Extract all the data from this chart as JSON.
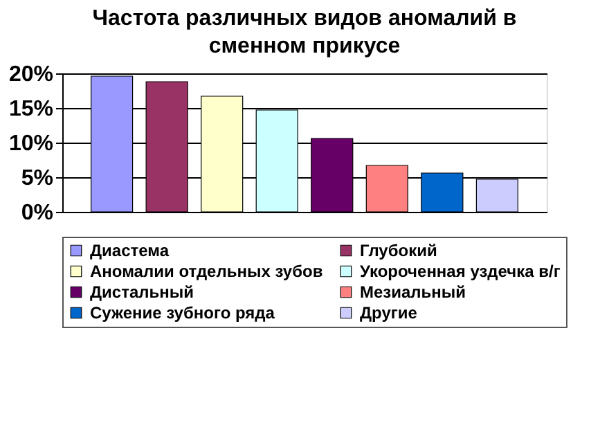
{
  "chart_data": {
    "type": "bar",
    "title": "Частота различных видов аномалий в сменном прикусе",
    "categories": [
      null
    ],
    "series": [
      {
        "name": "Диастема",
        "color": "#9999ff",
        "values": [
          19.6
        ]
      },
      {
        "name": "Глубокий",
        "color": "#993366",
        "values": [
          18.8
        ]
      },
      {
        "name": "Аномалии отдельных зубов",
        "color": "#ffffcc",
        "values": [
          16.7
        ]
      },
      {
        "name": "Укороченная уздечка в/г",
        "color": "#ccffff",
        "values": [
          14.7
        ]
      },
      {
        "name": "Дистальный",
        "color": "#660066",
        "values": [
          10.6
        ]
      },
      {
        "name": "Мезиальный",
        "color": "#ff8080",
        "values": [
          6.7
        ]
      },
      {
        "name": "Сужение зубного ряда",
        "color": "#0066cc",
        "values": [
          5.6
        ]
      },
      {
        "name": "Другие",
        "color": "#ccccff",
        "values": [
          4.7
        ]
      }
    ],
    "ylim": [
      0,
      20
    ],
    "yticks": [
      {
        "value": 0,
        "label": "0%"
      },
      {
        "value": 5,
        "label": "5%"
      },
      {
        "value": 10,
        "label": "10%"
      },
      {
        "value": 15,
        "label": "15%"
      },
      {
        "value": 20,
        "label": "20%"
      }
    ],
    "grid": "y",
    "legend": "bottom"
  }
}
